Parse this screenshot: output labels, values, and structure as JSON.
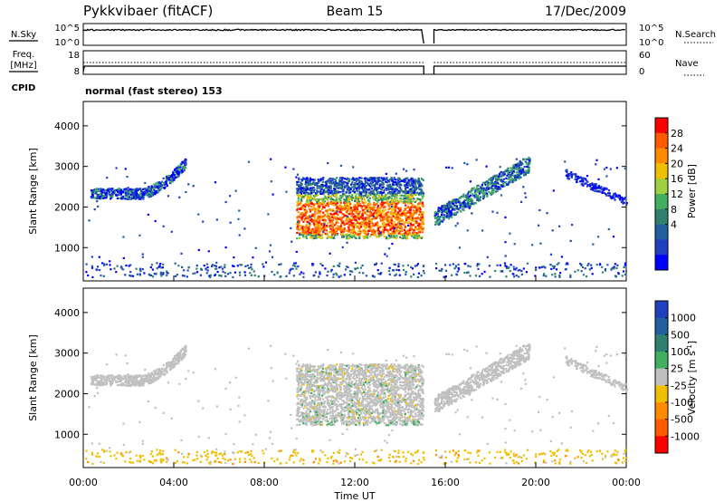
{
  "header": {
    "radar_title": "Pykkvibaer (fitACF)",
    "beam": "Beam 15",
    "date": "17/Dec/2009"
  },
  "left_labels": {
    "nsky": "N.Sky",
    "freq_line1": "Freq.",
    "freq_line2": "[MHz]",
    "cpid": "CPID"
  },
  "right_labels": {
    "nsearch": "N.Search",
    "nave": "Nave"
  },
  "noise_panel": {
    "left_ticks": [
      "10^5",
      "10^0"
    ],
    "right_ticks": [
      "10^5",
      "10^0"
    ]
  },
  "freq_panel": {
    "left_ticks": [
      "18",
      "8"
    ],
    "right_ticks": [
      "60",
      "0"
    ]
  },
  "cpid_text": "normal (fast stereo) 153",
  "chart_data": [
    {
      "type": "heatmap",
      "name": "power",
      "ylabel": "Slant Range [km]",
      "xlabel": "",
      "yticks": [
        1000,
        2000,
        3000,
        4000
      ],
      "ylim": [
        180,
        4600
      ],
      "colorbar_label": "Power [dB]",
      "colorbar_ticks": [
        "28",
        "24",
        "20",
        "16",
        "12",
        "8",
        "4"
      ],
      "colorbar_colors": [
        "#ff0000",
        "#ff5a00",
        "#ff8c00",
        "#f0c000",
        "#a0d040",
        "#40b060",
        "#308070",
        "#2060a0",
        "#2040c0",
        "#0000ff"
      ]
    },
    {
      "type": "heatmap",
      "name": "velocity",
      "ylabel": "Slant Range [km]",
      "xlabel": "Time UT",
      "yticks": [
        1000,
        2000,
        3000,
        4000
      ],
      "ylim": [
        180,
        4600
      ],
      "xticks": [
        "00:00",
        "04:00",
        "08:00",
        "12:00",
        "16:00",
        "20:00",
        "00:00"
      ],
      "colorbar_label": "Velocity [m s",
      "colorbar_label_sup": "-1",
      "colorbar_label_end": "]",
      "colorbar_ticks": [
        "1000",
        "500",
        "100",
        "25",
        "-25",
        "-100",
        "-500",
        "-1000"
      ],
      "colorbar_colors": [
        "#2040c0",
        "#2060a0",
        "#308070",
        "#40b060",
        "#c0c0c0",
        "#f0c000",
        "#ff8c00",
        "#ff5a00",
        "#ff0000"
      ]
    }
  ]
}
